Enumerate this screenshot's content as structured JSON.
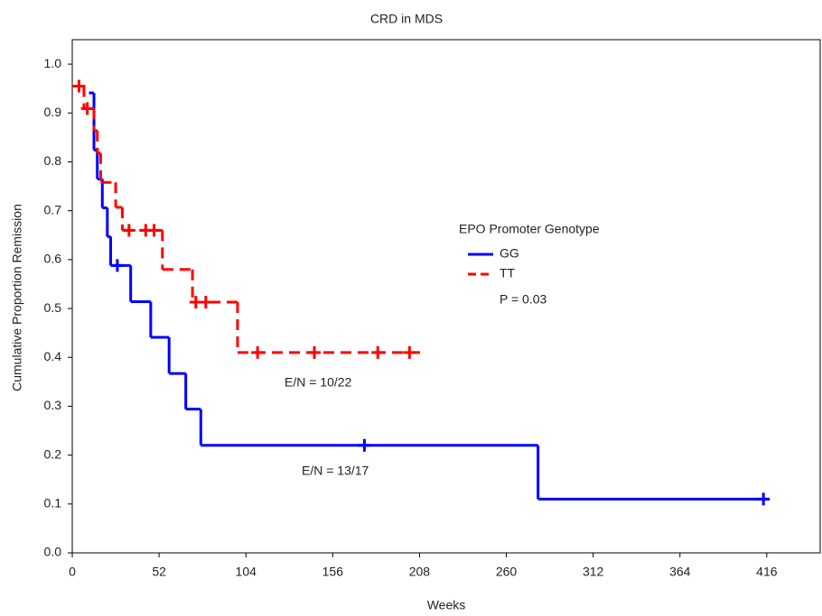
{
  "chart_data": {
    "type": "line",
    "step": "post",
    "title": "CRD in MDS",
    "x_label": "Weeks",
    "y_label": "Cumulative Proportion Remission",
    "xlim": [
      0,
      448
    ],
    "ylim": [
      0,
      1.05
    ],
    "xticks": [
      0,
      52,
      104,
      156,
      208,
      260,
      312,
      364,
      416
    ],
    "yticks": [
      {
        "value": 0,
        "label": "0.0"
      },
      0.1,
      0.2,
      0.3,
      0.4,
      0.5,
      0.6,
      0.7,
      0.8,
      0.9,
      {
        "value": 1,
        "label": "1.0"
      }
    ],
    "legend_title": "EPO Promoter Genotype",
    "legend_position": "center-right",
    "series": [
      {
        "name": "GG",
        "color": "#0000ff",
        "dash": false,
        "x": [
          10,
          13,
          15,
          18,
          21,
          23,
          35,
          47,
          58,
          68,
          77,
          279,
          416
        ],
        "values": [
          0.941,
          0.824,
          0.765,
          0.706,
          0.647,
          0.588,
          0.514,
          0.441,
          0.367,
          0.294,
          0.22,
          0.11,
          0.11
        ],
        "censored": {
          "x": [
            27,
            175,
            414
          ],
          "values": [
            0.588,
            0.22,
            0.11
          ]
        }
      },
      {
        "name": "TT",
        "color": "#ff0000",
        "dash": true,
        "x": [
          0,
          7,
          13,
          15,
          17,
          26,
          30,
          54,
          72,
          99,
          210
        ],
        "values": [
          0.955,
          0.909,
          0.864,
          0.818,
          0.758,
          0.707,
          0.66,
          0.58,
          0.513,
          0.41,
          0.41
        ],
        "censored": {
          "x": [
            4,
            9,
            34,
            44,
            49,
            74,
            80,
            111,
            145,
            183,
            202
          ],
          "values": [
            0.955,
            0.909,
            0.66,
            0.66,
            0.66,
            0.513,
            0.513,
            0.41,
            0.41,
            0.41,
            0.41
          ]
        }
      }
    ],
    "annotations": [
      "P = 0.03",
      "E/N = 10/22",
      "E/N = 13/17"
    ]
  }
}
